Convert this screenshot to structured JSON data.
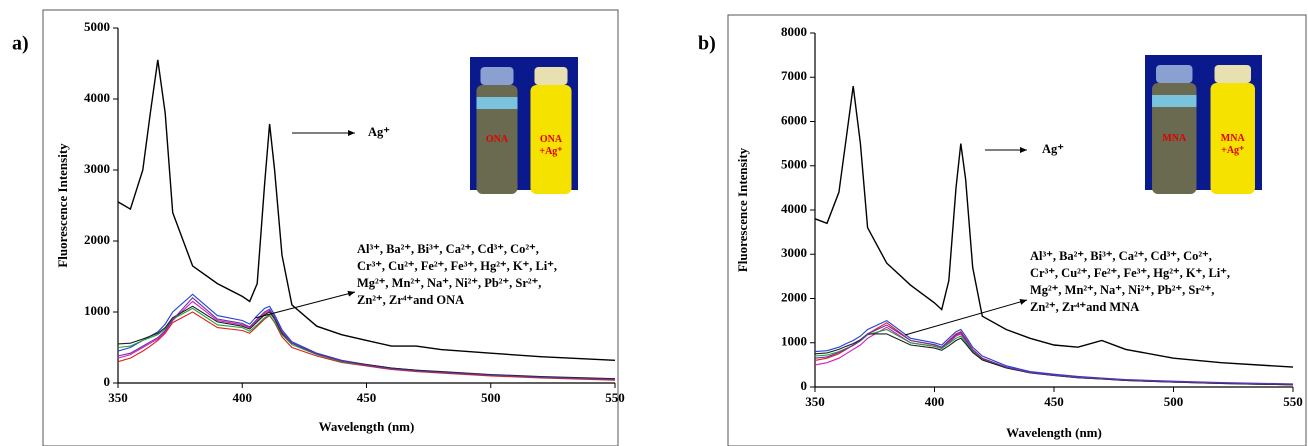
{
  "chart_data": [
    {
      "type": "line",
      "panel_label": "a)",
      "x_label": "Wavelength (nm)",
      "y_label": "Fluorescence Intensity",
      "x": [
        350,
        355,
        360,
        363,
        366,
        369,
        372,
        380,
        390,
        400,
        403,
        406,
        409,
        411,
        413,
        416,
        420,
        430,
        440,
        450,
        460,
        470,
        480,
        500,
        520,
        550
      ],
      "xlim": [
        350,
        550
      ],
      "xticks": [
        350,
        400,
        450,
        500,
        550
      ],
      "ylim": [
        0,
        5000
      ],
      "yticks": [
        0,
        1000,
        2000,
        3000,
        4000,
        5000
      ],
      "series": [
        {
          "color": "#000000",
          "values": [
            2550,
            2450,
            3000,
            3800,
            4550,
            3800,
            2400,
            1650,
            1400,
            1220,
            1150,
            1400,
            2800,
            3650,
            3000,
            1800,
            1100,
            800,
            680,
            600,
            520,
            520,
            470,
            420,
            370,
            320
          ]
        },
        {
          "color": "#e0201c",
          "values": [
            300,
            350,
            450,
            520,
            600,
            700,
            850,
            1000,
            780,
            740,
            700,
            800,
            900,
            950,
            850,
            650,
            500,
            380,
            290,
            240,
            190,
            160,
            140,
            100,
            70,
            40
          ]
        },
        {
          "color": "#2040e0",
          "values": [
            450,
            500,
            600,
            660,
            720,
            830,
            1000,
            1250,
            950,
            880,
            830,
            950,
            1050,
            1080,
            960,
            750,
            580,
            420,
            320,
            260,
            210,
            180,
            150,
            110,
            80,
            55
          ]
        },
        {
          "color": "#d020c0",
          "values": [
            350,
            400,
            500,
            560,
            620,
            720,
            880,
            1150,
            880,
            820,
            780,
            880,
            980,
            1020,
            920,
            720,
            560,
            410,
            310,
            250,
            200,
            170,
            150,
            110,
            80,
            50
          ]
        },
        {
          "color": "#20a040",
          "values": [
            500,
            520,
            600,
            640,
            680,
            760,
            900,
            1050,
            820,
            780,
            730,
            820,
            920,
            960,
            860,
            680,
            540,
            400,
            300,
            250,
            200,
            170,
            150,
            110,
            80,
            50
          ]
        },
        {
          "color": "#202020",
          "values": [
            550,
            560,
            620,
            660,
            700,
            780,
            920,
            1080,
            860,
            800,
            760,
            860,
            960,
            1000,
            900,
            700,
            560,
            410,
            310,
            260,
            210,
            180,
            160,
            120,
            90,
            60
          ]
        },
        {
          "color": "#7030a0",
          "values": [
            380,
            420,
            520,
            580,
            640,
            740,
            890,
            1200,
            900,
            840,
            790,
            900,
            1000,
            1040,
            930,
            720,
            560,
            410,
            310,
            250,
            200,
            170,
            150,
            110,
            80,
            50
          ]
        }
      ],
      "ag_label": "Ag⁺",
      "ions_label": [
        "Al³⁺, Ba²⁺,  Bi³⁺, Ca²⁺,  Cd³⁺, Co²⁺,",
        "Cr³⁺, Cu²⁺,  Fe²⁺,  Fe³⁺, Hg²⁺,  K⁺, Li⁺,",
        "Mg²⁺, Mn²⁺,  Na⁺, Ni²⁺,  Pb²⁺, Sr²⁺,",
        "Zn²⁺, Zr⁴⁺and ONA"
      ],
      "inset": {
        "left": "ONA",
        "right": [
          "ONA",
          "+Ag⁺"
        ]
      }
    },
    {
      "type": "line",
      "panel_label": "b)",
      "x_label": "Wavelength (nm)",
      "y_label": "Fluorescence Intensity",
      "x": [
        350,
        355,
        360,
        363,
        366,
        369,
        372,
        380,
        390,
        400,
        403,
        406,
        409,
        411,
        413,
        416,
        420,
        430,
        440,
        450,
        460,
        470,
        480,
        500,
        520,
        550
      ],
      "xlim": [
        350,
        550
      ],
      "xticks": [
        350,
        400,
        450,
        500,
        550
      ],
      "ylim": [
        0,
        8000
      ],
      "yticks": [
        0,
        1000,
        2000,
        3000,
        4000,
        5000,
        6000,
        7000,
        8000
      ],
      "series": [
        {
          "color": "#000000",
          "values": [
            3800,
            3700,
            4400,
            5600,
            6800,
            5500,
            3600,
            2800,
            2300,
            1900,
            1750,
            2400,
            4500,
            5500,
            4700,
            2700,
            1600,
            1300,
            1100,
            950,
            900,
            1050,
            850,
            650,
            550,
            450
          ]
        },
        {
          "color": "#e0201c",
          "values": [
            600,
            650,
            750,
            850,
            950,
            1050,
            1200,
            1450,
            1050,
            950,
            900,
            1050,
            1200,
            1250,
            1100,
            850,
            650,
            450,
            330,
            270,
            220,
            190,
            160,
            120,
            90,
            60
          ]
        },
        {
          "color": "#2040e0",
          "values": [
            800,
            820,
            900,
            980,
            1050,
            1150,
            1300,
            1500,
            1100,
            1000,
            950,
            1100,
            1250,
            1300,
            1150,
            900,
            700,
            480,
            350,
            290,
            240,
            200,
            170,
            130,
            100,
            70
          ]
        },
        {
          "color": "#d020c0",
          "values": [
            500,
            550,
            650,
            750,
            850,
            950,
            1100,
            1350,
            1000,
            920,
            870,
            1000,
            1150,
            1200,
            1050,
            820,
            630,
            440,
            320,
            260,
            210,
            180,
            150,
            110,
            80,
            50
          ]
        },
        {
          "color": "#20a040",
          "values": [
            700,
            720,
            800,
            870,
            940,
            1040,
            1180,
            1300,
            1000,
            920,
            870,
            980,
            1100,
            1150,
            1020,
            800,
            620,
            440,
            320,
            260,
            210,
            180,
            150,
            110,
            80,
            50
          ]
        },
        {
          "color": "#202020",
          "values": [
            750,
            770,
            850,
            920,
            980,
            1070,
            1200,
            1200,
            950,
            880,
            830,
            930,
            1050,
            1100,
            980,
            780,
            610,
            430,
            320,
            260,
            210,
            180,
            150,
            110,
            80,
            50
          ]
        },
        {
          "color": "#7030a0",
          "values": [
            650,
            680,
            780,
            860,
            940,
            1050,
            1200,
            1400,
            1050,
            960,
            900,
            1030,
            1180,
            1220,
            1080,
            840,
            640,
            450,
            330,
            270,
            220,
            190,
            160,
            120,
            90,
            60
          ]
        }
      ],
      "ag_label": "Ag⁺",
      "ions_label": [
        "Al³⁺, Ba²⁺,  Bi³⁺, Ca²⁺,  Cd³⁺, Co²⁺,",
        "Cr³⁺, Cu²⁺,  Fe²⁺,  Fe³⁺, Hg²⁺,  K⁺, Li⁺,",
        "Mg²⁺, Mn²⁺,  Na⁺, Ni²⁺,  Pb²⁺, Sr²⁺,",
        "Zn²⁺, Zr⁴⁺and MNA"
      ],
      "inset": {
        "left": "MNA",
        "right": [
          "MNA",
          "+Ag⁺"
        ]
      }
    }
  ]
}
